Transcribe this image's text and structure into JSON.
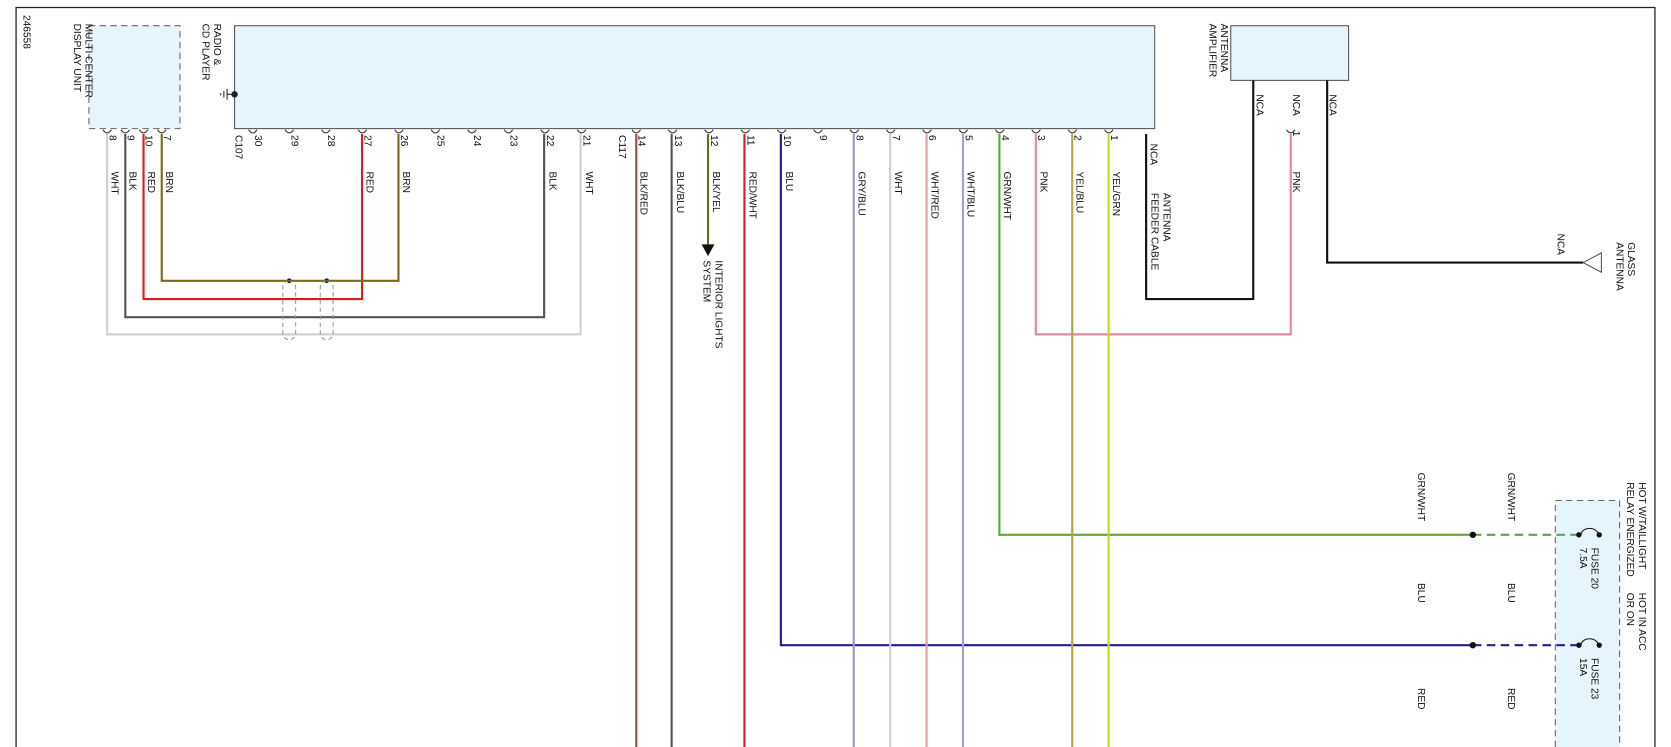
{
  "doc_id": "246558",
  "display": {
    "name": [
      "MULTI CENTER",
      "DISPLAY UNIT"
    ],
    "pins": [
      {
        "pin": "8",
        "wire": "WHT"
      },
      {
        "pin": "9",
        "wire": "BLK"
      },
      {
        "pin": "10",
        "wire": "RED"
      },
      {
        "pin": "7",
        "wire": "BRN"
      }
    ]
  },
  "radio": {
    "name": [
      "RADIO &",
      "CD PLAYER"
    ],
    "c107": {
      "connector": "C107",
      "pins": [
        {
          "pin": "30"
        },
        {
          "pin": "29"
        },
        {
          "pin": "28"
        },
        {
          "pin": "27",
          "wire": "RED"
        },
        {
          "pin": "26",
          "wire": "BRN"
        },
        {
          "pin": "25"
        },
        {
          "pin": "24"
        },
        {
          "pin": "23"
        },
        {
          "pin": "22",
          "wire": "BLK"
        },
        {
          "pin": "21",
          "wire": "WHT"
        }
      ]
    },
    "c117": {
      "connector": "C117",
      "pins": [
        {
          "pin": "14",
          "wire": "BLK/RED"
        },
        {
          "pin": "13",
          "wire": "BLK/BLU"
        },
        {
          "pin": "12",
          "wire": "BLK/YEL"
        },
        {
          "pin": "11",
          "wire": "RED/WHT"
        },
        {
          "pin": "10",
          "wire": "BLU"
        },
        {
          "pin": "9"
        },
        {
          "pin": "8",
          "wire": "GRY/BLU"
        },
        {
          "pin": "7",
          "wire": "WHT"
        },
        {
          "pin": "6",
          "wire": "WHT/RED"
        },
        {
          "pin": "5",
          "wire": "WHT/BLU"
        },
        {
          "pin": "4",
          "wire": "GRN/WHT"
        },
        {
          "pin": "3",
          "wire": "PNK"
        },
        {
          "pin": "2",
          "wire": "YEL/BLU"
        },
        {
          "pin": "1",
          "wire": "YEL/GRN"
        }
      ]
    }
  },
  "interior_lights": [
    "INTERIOR LIGHTS",
    "SYSTEM"
  ],
  "feeder_cable": {
    "label": "NCA",
    "name": [
      "ANTENNA",
      "FEEDER CABLE"
    ]
  },
  "amplifier": {
    "name": [
      "ANTENNA",
      "AMPLIFIER"
    ],
    "pins": [
      {
        "label": "NCA"
      },
      {
        "label": "NCA",
        "pin": "1",
        "wire": "PNK"
      },
      {
        "label": "NCA"
      }
    ]
  },
  "glass_antenna": {
    "label": "NCA",
    "name": [
      "GLASS",
      "ANTENNA"
    ]
  },
  "fuses": [
    {
      "source": [
        "HOT W/TAILLIGHT",
        "RELAY ENERGIZED"
      ],
      "name": "FUSE 20",
      "rating": "7.5A",
      "wire_in": "GRN/WHT",
      "wire_out": "GRN/WHT"
    },
    {
      "source": [
        "HOT IN ACC",
        "OR ON"
      ],
      "name": "FUSE 23",
      "rating": "15A",
      "wire_in": "BLU",
      "wire_out": "BLU"
    },
    {
      "wire_in": "RED",
      "wire_out": "RED"
    }
  ]
}
